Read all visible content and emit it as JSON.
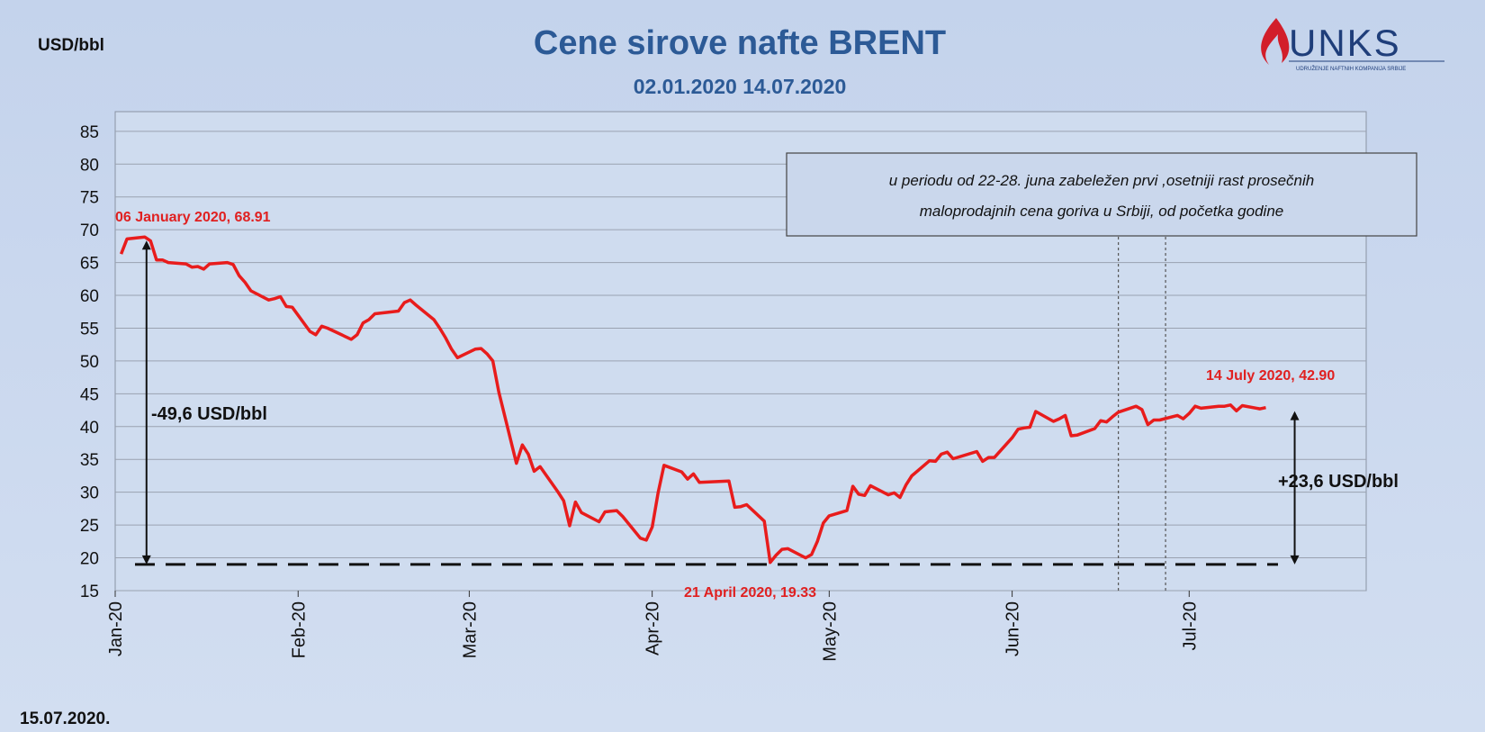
{
  "header": {
    "unit_label": "USD/bbl",
    "title": "Cene sirove nafte BRENT",
    "subtitle": "02.01.2020 14.07.2020",
    "logo_text": "UNKS",
    "logo_sub": "UDRUŽENJE NAFTNIH KOMPANIJA SRBIJE",
    "date_label": "15.07.2020."
  },
  "colors": {
    "background": "#c9d7ee",
    "plot_bg": "#cfdcef",
    "line": "#e81c1c",
    "title": "#2c5a96",
    "annotation_red": "#e02020"
  },
  "annotations": {
    "peak_label": "06 January 2020, 68.91",
    "low_label": "21 April 2020, 19.33",
    "last_label": "14 July 2020, 42.90",
    "drop_label": "-49,6 USD/bbl",
    "rise_label": "+23,6 USD/bbl",
    "note_line1": "u periodu od 22-28. juna zabeležen prvi ,osetniji rast prosečnih",
    "note_line2": "maloprodajnih cena goriva u Srbiji, od početka godine"
  },
  "chart_data": {
    "type": "line",
    "title": "Cene sirove nafte BRENT",
    "subtitle": "02.01.2020 14.07.2020",
    "xlabel": "",
    "ylabel": "USD/bbl",
    "ylim": [
      15,
      88
    ],
    "yticks": [
      15,
      20,
      25,
      30,
      35,
      40,
      45,
      50,
      55,
      60,
      65,
      70,
      75,
      80,
      85
    ],
    "grid": true,
    "x_axis_type": "date",
    "xlim": [
      "2020-01-01",
      "2020-07-31"
    ],
    "x_ticks": [
      {
        "date": "2020-01-01",
        "label": "Jan-20"
      },
      {
        "date": "2020-02-01",
        "label": "Feb-20"
      },
      {
        "date": "2020-03-01",
        "label": "Mar-20"
      },
      {
        "date": "2020-04-01",
        "label": "Apr-20"
      },
      {
        "date": "2020-05-01",
        "label": "May-20"
      },
      {
        "date": "2020-06-01",
        "label": "Jun-20"
      },
      {
        "date": "2020-07-01",
        "label": "Jul-20"
      }
    ],
    "reference_line": {
      "y": 19,
      "style": "dashed"
    },
    "vertical_markers": [
      "2020-06-19",
      "2020-06-27"
    ],
    "series": [
      {
        "data": [
          [
            "2020-01-02",
            66.3
          ],
          [
            "2020-01-03",
            68.6
          ],
          [
            "2020-01-06",
            68.9
          ],
          [
            "2020-01-07",
            68.3
          ],
          [
            "2020-01-08",
            65.4
          ],
          [
            "2020-01-09",
            65.4
          ],
          [
            "2020-01-10",
            65.0
          ],
          [
            "2020-01-13",
            64.8
          ],
          [
            "2020-01-14",
            64.3
          ],
          [
            "2020-01-15",
            64.4
          ],
          [
            "2020-01-16",
            64.0
          ],
          [
            "2020-01-17",
            64.8
          ],
          [
            "2020-01-20",
            65.0
          ],
          [
            "2020-01-21",
            64.7
          ],
          [
            "2020-01-22",
            63.0
          ],
          [
            "2020-01-23",
            62.0
          ],
          [
            "2020-01-24",
            60.7
          ],
          [
            "2020-01-27",
            59.3
          ],
          [
            "2020-01-28",
            59.5
          ],
          [
            "2020-01-29",
            59.8
          ],
          [
            "2020-01-30",
            58.3
          ],
          [
            "2020-01-31",
            58.2
          ],
          [
            "2020-02-03",
            54.5
          ],
          [
            "2020-02-04",
            54.0
          ],
          [
            "2020-02-05",
            55.3
          ],
          [
            "2020-02-06",
            55.0
          ],
          [
            "2020-02-10",
            53.3
          ],
          [
            "2020-02-11",
            54.0
          ],
          [
            "2020-02-12",
            55.8
          ],
          [
            "2020-02-13",
            56.3
          ],
          [
            "2020-02-14",
            57.2
          ],
          [
            "2020-02-17",
            57.5
          ],
          [
            "2020-02-18",
            57.6
          ],
          [
            "2020-02-19",
            58.9
          ],
          [
            "2020-02-20",
            59.3
          ],
          [
            "2020-02-21",
            58.5
          ],
          [
            "2020-02-24",
            56.3
          ],
          [
            "2020-02-25",
            55.0
          ],
          [
            "2020-02-26",
            53.5
          ],
          [
            "2020-02-27",
            51.8
          ],
          [
            "2020-02-28",
            50.5
          ],
          [
            "2020-03-02",
            51.8
          ],
          [
            "2020-03-03",
            51.9
          ],
          [
            "2020-03-04",
            51.1
          ],
          [
            "2020-03-05",
            50.0
          ],
          [
            "2020-03-06",
            45.3
          ],
          [
            "2020-03-09",
            34.4
          ],
          [
            "2020-03-10",
            37.2
          ],
          [
            "2020-03-11",
            35.8
          ],
          [
            "2020-03-12",
            33.2
          ],
          [
            "2020-03-13",
            33.9
          ],
          [
            "2020-03-16",
            30.1
          ],
          [
            "2020-03-17",
            28.7
          ],
          [
            "2020-03-18",
            24.9
          ],
          [
            "2020-03-19",
            28.5
          ],
          [
            "2020-03-20",
            26.9
          ],
          [
            "2020-03-23",
            25.5
          ],
          [
            "2020-03-24",
            27.0
          ],
          [
            "2020-03-25",
            27.1
          ],
          [
            "2020-03-26",
            27.2
          ],
          [
            "2020-03-27",
            26.3
          ],
          [
            "2020-03-30",
            23.0
          ],
          [
            "2020-03-31",
            22.7
          ],
          [
            "2020-04-01",
            24.7
          ],
          [
            "2020-04-02",
            29.9
          ],
          [
            "2020-04-03",
            34.1
          ],
          [
            "2020-04-06",
            33.1
          ],
          [
            "2020-04-07",
            32.0
          ],
          [
            "2020-04-08",
            32.8
          ],
          [
            "2020-04-09",
            31.5
          ],
          [
            "2020-04-14",
            31.7
          ],
          [
            "2020-04-15",
            27.7
          ],
          [
            "2020-04-16",
            27.8
          ],
          [
            "2020-04-17",
            28.1
          ],
          [
            "2020-04-20",
            25.6
          ],
          [
            "2020-04-21",
            19.3
          ],
          [
            "2020-04-22",
            20.4
          ],
          [
            "2020-04-23",
            21.3
          ],
          [
            "2020-04-24",
            21.4
          ],
          [
            "2020-04-27",
            20.0
          ],
          [
            "2020-04-28",
            20.5
          ],
          [
            "2020-04-29",
            22.5
          ],
          [
            "2020-04-30",
            25.3
          ],
          [
            "2020-05-01",
            26.4
          ],
          [
            "2020-05-04",
            27.2
          ],
          [
            "2020-05-05",
            30.9
          ],
          [
            "2020-05-06",
            29.7
          ],
          [
            "2020-05-07",
            29.5
          ],
          [
            "2020-05-08",
            31.0
          ],
          [
            "2020-05-11",
            29.6
          ],
          [
            "2020-05-12",
            29.9
          ],
          [
            "2020-05-13",
            29.2
          ],
          [
            "2020-05-14",
            31.1
          ],
          [
            "2020-05-15",
            32.5
          ],
          [
            "2020-05-18",
            34.8
          ],
          [
            "2020-05-19",
            34.7
          ],
          [
            "2020-05-20",
            35.8
          ],
          [
            "2020-05-21",
            36.1
          ],
          [
            "2020-05-22",
            35.1
          ],
          [
            "2020-05-26",
            36.2
          ],
          [
            "2020-05-27",
            34.7
          ],
          [
            "2020-05-28",
            35.3
          ],
          [
            "2020-05-29",
            35.3
          ],
          [
            "2020-06-01",
            38.3
          ],
          [
            "2020-06-02",
            39.6
          ],
          [
            "2020-06-03",
            39.8
          ],
          [
            "2020-06-04",
            39.9
          ],
          [
            "2020-06-05",
            42.3
          ],
          [
            "2020-06-08",
            40.8
          ],
          [
            "2020-06-09",
            41.2
          ],
          [
            "2020-06-10",
            41.7
          ],
          [
            "2020-06-11",
            38.6
          ],
          [
            "2020-06-12",
            38.7
          ],
          [
            "2020-06-15",
            39.7
          ],
          [
            "2020-06-16",
            40.9
          ],
          [
            "2020-06-17",
            40.7
          ],
          [
            "2020-06-18",
            41.5
          ],
          [
            "2020-06-19",
            42.2
          ],
          [
            "2020-06-22",
            43.1
          ],
          [
            "2020-06-23",
            42.6
          ],
          [
            "2020-06-24",
            40.3
          ],
          [
            "2020-06-25",
            41.0
          ],
          [
            "2020-06-26",
            41.0
          ],
          [
            "2020-06-29",
            41.7
          ],
          [
            "2020-06-30",
            41.2
          ],
          [
            "2020-07-01",
            42.0
          ],
          [
            "2020-07-02",
            43.1
          ],
          [
            "2020-07-03",
            42.8
          ],
          [
            "2020-07-06",
            43.1
          ],
          [
            "2020-07-07",
            43.1
          ],
          [
            "2020-07-08",
            43.3
          ],
          [
            "2020-07-09",
            42.4
          ],
          [
            "2020-07-10",
            43.2
          ],
          [
            "2020-07-13",
            42.7
          ],
          [
            "2020-07-14",
            42.9
          ]
        ]
      }
    ]
  }
}
